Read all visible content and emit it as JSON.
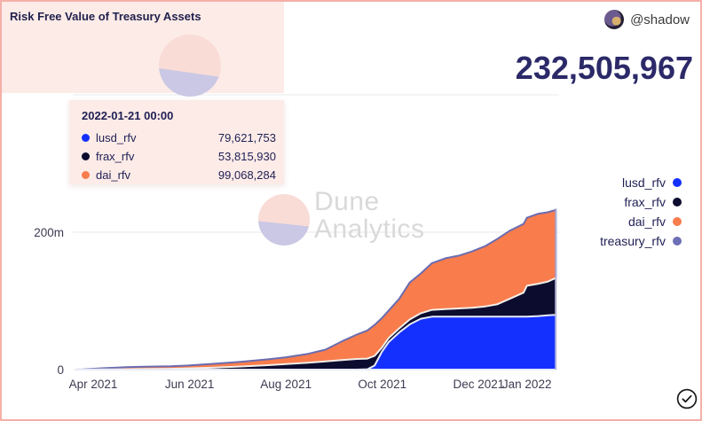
{
  "header": {
    "title": "Risk Free Value of Treasury Assets",
    "big_number": "232,505,967"
  },
  "author": {
    "handle": "@shadow"
  },
  "tooltip": {
    "timestamp": "2022-01-21 00:00",
    "rows": [
      {
        "label": "lusd_rfv",
        "value": "79,621,753",
        "color": "#1430ff"
      },
      {
        "label": "frax_rfv",
        "value": "53,815,930",
        "color": "#0c0c2f"
      },
      {
        "label": "dai_rfv",
        "value": "99,068,284",
        "color": "#f97c4c"
      }
    ]
  },
  "legend": {
    "items": [
      {
        "label": "lusd_rfv",
        "color": "#1430ff"
      },
      {
        "label": "frax_rfv",
        "color": "#0c0c2f"
      },
      {
        "label": "dai_rfv",
        "color": "#f97c4c"
      },
      {
        "label": "treasury_rfv",
        "color": "#6e70b5"
      }
    ]
  },
  "watermark": {
    "line1": "Dune",
    "line2": "Analytics"
  },
  "colors": {
    "lusd_area": "#1430ff",
    "frax_area": "#0c0c2f",
    "dai_area": "#f97c4c",
    "treasury_line": "#6a6cb0",
    "gridline": "#e9e9ec",
    "hover_line": "#b3b3da",
    "card_pink": "#fcebe7",
    "page_border": "#f5b0a8",
    "text_navy": "#1f1f55"
  },
  "chart_data": {
    "type": "area",
    "stacked": true,
    "title": "Risk Free Value of Treasury Assets",
    "unit": "millions",
    "grid": "horizontal",
    "legend_position": "right",
    "series_order": [
      "lusd_rfv",
      "frax_rfv",
      "dai_rfv"
    ],
    "total_line_series": "treasury_rfv",
    "x_axis": {
      "ticks": [
        {
          "label": "Apr 2021",
          "m": 0
        },
        {
          "label": "Jun 2021",
          "m": 2
        },
        {
          "label": "Aug 2021",
          "m": 4
        },
        {
          "label": "Oct 2021",
          "m": 6
        },
        {
          "label": "Dec 2021",
          "m": 8
        },
        {
          "label": "Jan 2022",
          "m": 9
        }
      ]
    },
    "y_axis": {
      "ticks": [
        {
          "label": "0",
          "value": 0
        },
        {
          "label": "200m",
          "value": 200
        }
      ],
      "range_m": [
        0,
        450
      ]
    },
    "samples_format": [
      "months_after_2021_04_01",
      "lusd_rfv_m",
      "frax_rfv_m",
      "dai_rfv_m"
    ],
    "samples": [
      [
        -0.37,
        0,
        0,
        0
      ],
      [
        -0.2,
        0,
        0,
        0.2
      ],
      [
        0.13,
        0,
        0.3,
        1.5
      ],
      [
        0.68,
        0,
        0.5,
        3.0
      ],
      [
        1.05,
        0,
        0.8,
        3.4
      ],
      [
        1.6,
        0,
        1.2,
        3.6
      ],
      [
        1.97,
        0,
        1.8,
        4.2
      ],
      [
        2.52,
        0,
        3.0,
        5.5
      ],
      [
        3.08,
        0,
        4.5,
        7.0
      ],
      [
        3.63,
        0,
        6.5,
        8.5
      ],
      [
        4.0,
        0,
        8.0,
        10.0
      ],
      [
        4.46,
        0,
        10.0,
        13.0
      ],
      [
        4.82,
        0,
        12.0,
        17.0
      ],
      [
        5.19,
        0,
        14.0,
        28.0
      ],
      [
        5.47,
        0,
        15.5,
        35.5
      ],
      [
        5.69,
        0.5,
        15.5,
        41.0
      ],
      [
        5.84,
        6,
        14,
        45
      ],
      [
        5.99,
        26,
        6,
        43
      ],
      [
        6.13,
        40,
        6,
        40
      ],
      [
        6.35,
        54,
        6,
        43
      ],
      [
        6.57,
        66,
        7,
        54
      ],
      [
        6.8,
        74,
        8,
        58
      ],
      [
        7.03,
        77,
        10,
        68
      ],
      [
        7.31,
        77,
        11,
        74
      ],
      [
        7.59,
        77,
        12,
        77
      ],
      [
        7.86,
        77,
        13,
        82
      ],
      [
        8.14,
        77,
        15,
        88
      ],
      [
        8.38,
        77,
        18,
        95
      ],
      [
        8.64,
        77,
        26,
        99
      ],
      [
        8.93,
        77,
        35,
        100
      ],
      [
        9.0,
        77,
        45,
        99
      ],
      [
        9.24,
        78,
        47,
        102
      ],
      [
        9.43,
        79,
        49,
        101
      ],
      [
        9.6,
        79.6,
        53.8,
        99.1
      ]
    ],
    "hover": {
      "timestamp": "2022-01-21 00:00",
      "total": "232,505,967"
    }
  }
}
